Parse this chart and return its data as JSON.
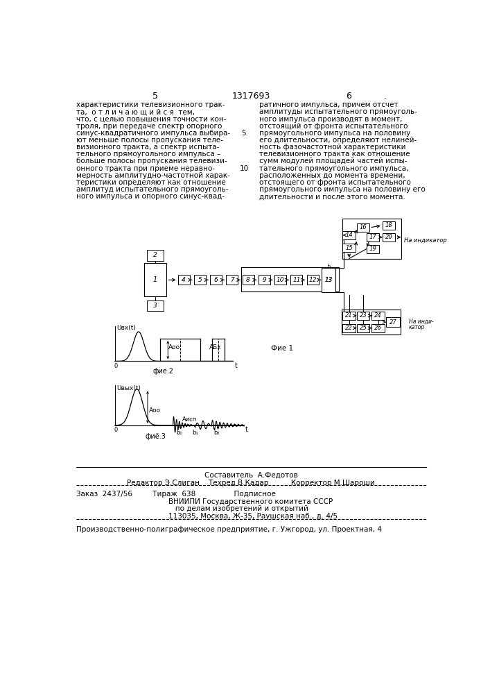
{
  "page_number_left": "5",
  "patent_number": "1317693",
  "page_number_right": "6",
  "bg_color": "#ffffff",
  "text_color": "#000000",
  "left_column_text": [
    "характеристики телевизионного трак-",
    "та,  о т л и ч а ю щ и й с я  тем,",
    "что, с целью повышения точности кон-",
    "троля, при передаче спектр опорного",
    "синус-квадратичного импульса выбира-",
    "ют меньше полосы пропускания теле-",
    "визионного тракта, а спектр испыта-",
    "тельного прямоугольного импульса –",
    "больше полосы пропускания телевизи-",
    "онного тракта при приеме неравно-",
    "мерность амплитудно-частотной харак-",
    "теристики определяют как отношение",
    "амплитуд испытательного прямоуголь-",
    "ного импульса и опорного синус-квад-"
  ],
  "right_column_text": [
    "ратичного импульса, причем отсчет",
    "амплитуды испытательного прямоуголь-",
    "ного импульса производят в момент,",
    "отстоящий от фронта испытательного",
    "прямоугольного импульса на половину",
    "его длительности, определяют нелиней-",
    "ность фазочастотной характеристики",
    "телевизионного тракта как отношение",
    "сумм модулей площадей частей испы-",
    "тательного прямоугольного импульса,",
    "расположенных до момента времени,",
    "отстоящего от фронта испытательного",
    "прямоугольного импульса на половину его",
    "длительности и после этого момента."
  ],
  "line_number_5": "5",
  "line_number_10": "10",
  "composer_line": "Составитель  А.Федотов",
  "editor_line": "Редактор Э.Слиган    Техред В.Кадар          Корректор М.Шароши",
  "order_line": "Заказ  2437/56         Тираж  638                 Подписное",
  "vniipi_line1": "ВНИИПИ Государственного комитета СССР",
  "vniipi_line2": "   по делам изобретений и открытий",
  "vniipi_line3": "113035, Москва, Ж-35, Раушская наб., д. 4/5",
  "production_line": "Производственно-полиграфическое предприятие, г. Ужгород, ул. Проектная, 4",
  "fig1_label": "Фие 1",
  "fig2_label": "фие.2",
  "fig3_label": "фиё.3"
}
